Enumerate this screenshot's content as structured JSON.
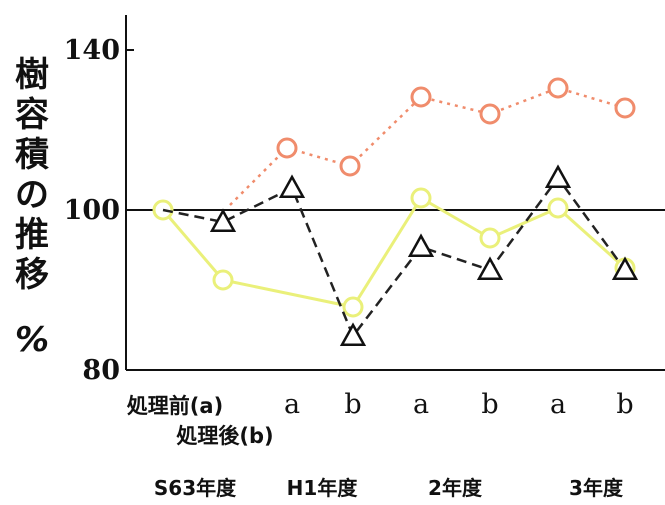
{
  "chart_data": {
    "type": "line",
    "ylabel": "樹容積の推移",
    "yunit": "%",
    "ylim": [
      80,
      150
    ],
    "yticks": [
      80,
      100,
      140
    ],
    "reference_line": 100,
    "categories": [
      "処理前(a)",
      "a",
      "b",
      "a",
      "b",
      "a",
      "b"
    ],
    "category_sublabel": "処理後(b)",
    "year_groups": [
      "S63年度",
      "H1年度",
      "2年度",
      "3年度"
    ],
    "series": [
      {
        "marker": "circle",
        "style": "solid",
        "color": "#eef07a",
        "values": [
          100,
          91,
          null,
          100.5,
          97,
          100,
          93
        ]
      },
      {
        "marker": "circle",
        "style": "dotted",
        "color": "#f08c6c",
        "values": [
          null,
          null,
          null,
          null,
          null,
          null,
          null
        ]
      },
      {
        "marker": "triangle",
        "style": "dashed",
        "color": "#222222",
        "values": [
          null,
          98,
          102,
          83,
          95,
          93,
          104
        ]
      }
    ]
  }
}
